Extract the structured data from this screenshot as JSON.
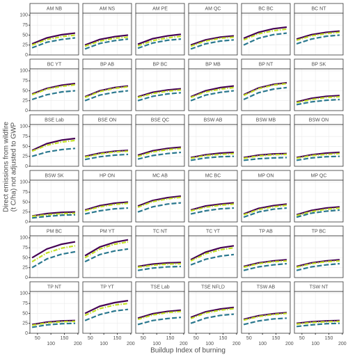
{
  "chart_data": {
    "type": "line",
    "y_label": "Direct emissions from wildfire\n(t C/ha) not adjusted to GWP",
    "x_label": "Buildup Index of burning",
    "x": [
      30,
      85,
      140,
      190
    ],
    "xlim": [
      22,
      203
    ],
    "xticks": [
      50,
      100,
      150,
      200
    ],
    "ylim": [
      0,
      105
    ],
    "yticks": [
      0,
      25,
      50,
      75,
      100
    ],
    "colors": [
      "#440154",
      "#c2df23",
      "#2a788e"
    ],
    "grid": true,
    "panels": [
      {
        "title": "AM NB",
        "values": [
          [
            28,
            43,
            51,
            55
          ],
          [
            25,
            39,
            46,
            50
          ],
          [
            18,
            32,
            39,
            43
          ]
        ]
      },
      {
        "title": "AM NS",
        "values": [
          [
            25,
            39,
            46,
            50
          ],
          [
            22,
            35,
            42,
            45
          ],
          [
            15,
            29,
            36,
            40
          ]
        ]
      },
      {
        "title": "AM PE",
        "values": [
          [
            27,
            41,
            48,
            52
          ],
          [
            23,
            36,
            43,
            47
          ],
          [
            17,
            30,
            37,
            40
          ]
        ]
      },
      {
        "title": "AM QC",
        "values": [
          [
            25,
            38,
            45,
            48
          ],
          [
            22,
            35,
            42,
            45
          ],
          [
            15,
            28,
            35,
            38
          ]
        ]
      },
      {
        "title": "BC BC",
        "values": [
          [
            42,
            57,
            66,
            70
          ],
          [
            38,
            53,
            61,
            65
          ],
          [
            25,
            42,
            51,
            55
          ]
        ]
      },
      {
        "title": "BC NT",
        "values": [
          [
            40,
            51,
            57,
            60
          ],
          [
            37,
            48,
            54,
            57
          ],
          [
            28,
            40,
            47,
            50
          ]
        ]
      },
      {
        "title": "BC YT",
        "values": [
          [
            42,
            56,
            64,
            68
          ],
          [
            40,
            54,
            61,
            65
          ],
          [
            28,
            40,
            47,
            50
          ]
        ]
      },
      {
        "title": "BP AB",
        "values": [
          [
            35,
            50,
            58,
            62
          ],
          [
            33,
            48,
            56,
            60
          ],
          [
            25,
            39,
            46,
            50
          ]
        ]
      },
      {
        "title": "BP BC",
        "values": [
          [
            35,
            46,
            52,
            55
          ],
          [
            33,
            43,
            49,
            52
          ],
          [
            25,
            36,
            42,
            45
          ]
        ]
      },
      {
        "title": "BP MB",
        "values": [
          [
            35,
            50,
            58,
            62
          ],
          [
            33,
            47,
            54,
            58
          ],
          [
            25,
            39,
            46,
            50
          ]
        ]
      },
      {
        "title": "BP NT",
        "values": [
          [
            40,
            57,
            66,
            70
          ],
          [
            38,
            55,
            64,
            68
          ],
          [
            28,
            45,
            54,
            58
          ]
        ]
      },
      {
        "title": "BP SK",
        "values": [
          [
            22,
            31,
            36,
            38
          ],
          [
            20,
            28,
            33,
            35
          ],
          [
            15,
            22,
            26,
            28
          ]
        ]
      },
      {
        "title": "BSE Lab",
        "values": [
          [
            40,
            57,
            66,
            70
          ],
          [
            38,
            53,
            61,
            65
          ],
          [
            25,
            36,
            42,
            45
          ]
        ]
      },
      {
        "title": "BSE ON",
        "values": [
          [
            25,
            33,
            38,
            40
          ],
          [
            23,
            31,
            36,
            38
          ],
          [
            17,
            24,
            28,
            30
          ]
        ]
      },
      {
        "title": "BSE QC",
        "values": [
          [
            28,
            39,
            45,
            48
          ],
          [
            25,
            36,
            42,
            45
          ],
          [
            18,
            27,
            32,
            35
          ]
        ]
      },
      {
        "title": "BSW AB",
        "values": [
          [
            22,
            29,
            33,
            35
          ],
          [
            20,
            27,
            30,
            32
          ],
          [
            15,
            21,
            24,
            25
          ]
        ]
      },
      {
        "title": "BSW MB",
        "values": [
          [
            22,
            28,
            31,
            32
          ],
          [
            20,
            26,
            29,
            30
          ],
          [
            15,
            19,
            21,
            22
          ]
        ]
      },
      {
        "title": "BSW ON",
        "values": [
          [
            22,
            29,
            33,
            35
          ],
          [
            20,
            27,
            30,
            32
          ],
          [
            15,
            21,
            24,
            25
          ]
        ]
      },
      {
        "title": "BSW SK",
        "values": [
          [
            15,
            21,
            24,
            25
          ],
          [
            14,
            18,
            21,
            22
          ],
          [
            10,
            14,
            17,
            18
          ]
        ]
      },
      {
        "title": "HP ON",
        "values": [
          [
            30,
            41,
            47,
            50
          ],
          [
            28,
            38,
            44,
            47
          ],
          [
            20,
            28,
            33,
            35
          ]
        ]
      },
      {
        "title": "MC AB",
        "values": [
          [
            40,
            54,
            61,
            65
          ],
          [
            37,
            51,
            58,
            62
          ],
          [
            25,
            38,
            45,
            48
          ]
        ]
      },
      {
        "title": "MC BC",
        "values": [
          [
            30,
            40,
            45,
            48
          ],
          [
            28,
            37,
            42,
            45
          ],
          [
            20,
            28,
            33,
            35
          ]
        ]
      },
      {
        "title": "MP ON",
        "values": [
          [
            20,
            34,
            41,
            45
          ],
          [
            18,
            31,
            38,
            42
          ],
          [
            12,
            25,
            32,
            35
          ]
        ]
      },
      {
        "title": "MP QC",
        "values": [
          [
            18,
            29,
            35,
            38
          ],
          [
            16,
            26,
            32,
            35
          ],
          [
            12,
            22,
            27,
            30
          ]
        ]
      },
      {
        "title": "PM BC",
        "values": [
          [
            50,
            72,
            84,
            90
          ],
          [
            40,
            62,
            74,
            80
          ],
          [
            25,
            47,
            59,
            65
          ]
        ]
      },
      {
        "title": "PM YT",
        "values": [
          [
            55,
            77,
            89,
            95
          ],
          [
            50,
            72,
            84,
            90
          ],
          [
            40,
            58,
            67,
            72
          ]
        ]
      },
      {
        "title": "TC NT",
        "values": [
          [
            28,
            34,
            37,
            38
          ],
          [
            26,
            31,
            34,
            35
          ],
          [
            18,
            24,
            27,
            28
          ]
        ]
      },
      {
        "title": "TC YT",
        "values": [
          [
            45,
            64,
            75,
            80
          ],
          [
            42,
            60,
            70,
            75
          ],
          [
            32,
            46,
            54,
            58
          ]
        ]
      },
      {
        "title": "TP AB",
        "values": [
          [
            28,
            37,
            42,
            45
          ],
          [
            26,
            35,
            40,
            42
          ],
          [
            18,
            27,
            32,
            35
          ]
        ]
      },
      {
        "title": "TP BC",
        "values": [
          [
            28,
            37,
            42,
            45
          ],
          [
            26,
            35,
            40,
            42
          ],
          [
            18,
            27,
            32,
            35
          ]
        ]
      },
      {
        "title": "TP NT",
        "values": [
          [
            22,
            28,
            31,
            32
          ],
          [
            20,
            26,
            29,
            30
          ],
          [
            15,
            21,
            24,
            25
          ]
        ]
      },
      {
        "title": "TP YT",
        "values": [
          [
            50,
            68,
            77,
            82
          ],
          [
            45,
            62,
            71,
            75
          ],
          [
            32,
            47,
            56,
            60
          ]
        ]
      },
      {
        "title": "TSE Lab",
        "values": [
          [
            38,
            49,
            55,
            58
          ],
          [
            35,
            46,
            52,
            55
          ],
          [
            22,
            32,
            37,
            40
          ]
        ]
      },
      {
        "title": "TSE NFLD",
        "values": [
          [
            40,
            54,
            61,
            65
          ],
          [
            37,
            51,
            58,
            62
          ],
          [
            25,
            38,
            45,
            48
          ]
        ]
      },
      {
        "title": "TSW AB",
        "values": [
          [
            35,
            44,
            49,
            52
          ],
          [
            33,
            42,
            47,
            50
          ],
          [
            22,
            31,
            36,
            38
          ]
        ]
      },
      {
        "title": "TSW NT",
        "values": [
          [
            25,
            29,
            31,
            32
          ],
          [
            23,
            27,
            29,
            30
          ],
          [
            17,
            21,
            24,
            25
          ]
        ]
      }
    ]
  }
}
